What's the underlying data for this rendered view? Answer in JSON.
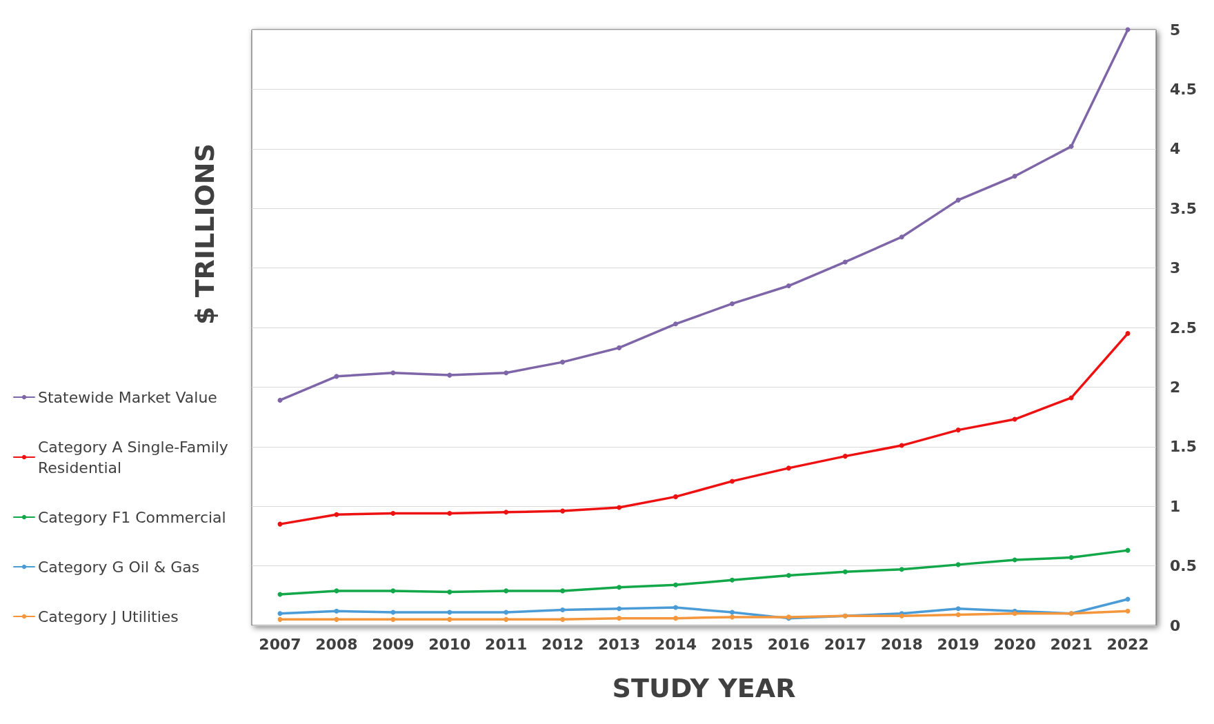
{
  "chart_data": {
    "type": "line",
    "xlabel": "STUDY YEAR",
    "ylabel": "$ TRILLIONS",
    "categories": [
      "2007",
      "2008",
      "2009",
      "2010",
      "2011",
      "2012",
      "2013",
      "2014",
      "2015",
      "2016",
      "2017",
      "2018",
      "2019",
      "2020",
      "2021",
      "2022"
    ],
    "series": [
      {
        "name": "Statewide Market Value",
        "color": "#7e65a8",
        "values": [
          1.89,
          2.09,
          2.12,
          2.1,
          2.12,
          2.21,
          2.33,
          2.53,
          2.7,
          2.85,
          3.05,
          3.26,
          3.57,
          3.77,
          4.02,
          5.0
        ]
      },
      {
        "name": "Category A Single-Family Residential",
        "color": "#ee1111",
        "values": [
          0.85,
          0.93,
          0.94,
          0.94,
          0.95,
          0.96,
          0.99,
          1.08,
          1.21,
          1.32,
          1.42,
          1.51,
          1.64,
          1.73,
          1.91,
          2.45
        ]
      },
      {
        "name": "Category F1 Commercial",
        "color": "#12a84a",
        "values": [
          0.26,
          0.29,
          0.29,
          0.28,
          0.29,
          0.29,
          0.32,
          0.34,
          0.38,
          0.42,
          0.45,
          0.47,
          0.51,
          0.55,
          0.57,
          0.63
        ]
      },
      {
        "name": "Category G Oil & Gas",
        "color": "#4a9bd6",
        "values": [
          0.1,
          0.12,
          0.11,
          0.11,
          0.11,
          0.13,
          0.14,
          0.15,
          0.11,
          0.06,
          0.08,
          0.1,
          0.14,
          0.12,
          0.1,
          0.22
        ]
      },
      {
        "name": "Category J Utilities",
        "color": "#f4963c",
        "values": [
          0.05,
          0.05,
          0.05,
          0.05,
          0.05,
          0.05,
          0.06,
          0.06,
          0.07,
          0.07,
          0.08,
          0.08,
          0.09,
          0.1,
          0.1,
          0.12
        ]
      }
    ],
    "ylim": [
      0,
      5
    ],
    "yticks": [
      0,
      0.5,
      1,
      1.5,
      2,
      2.5,
      3,
      3.5,
      4,
      4.5,
      5
    ],
    "grid": "y",
    "legend": "left",
    "marker": "circle",
    "line_style": "solid"
  }
}
